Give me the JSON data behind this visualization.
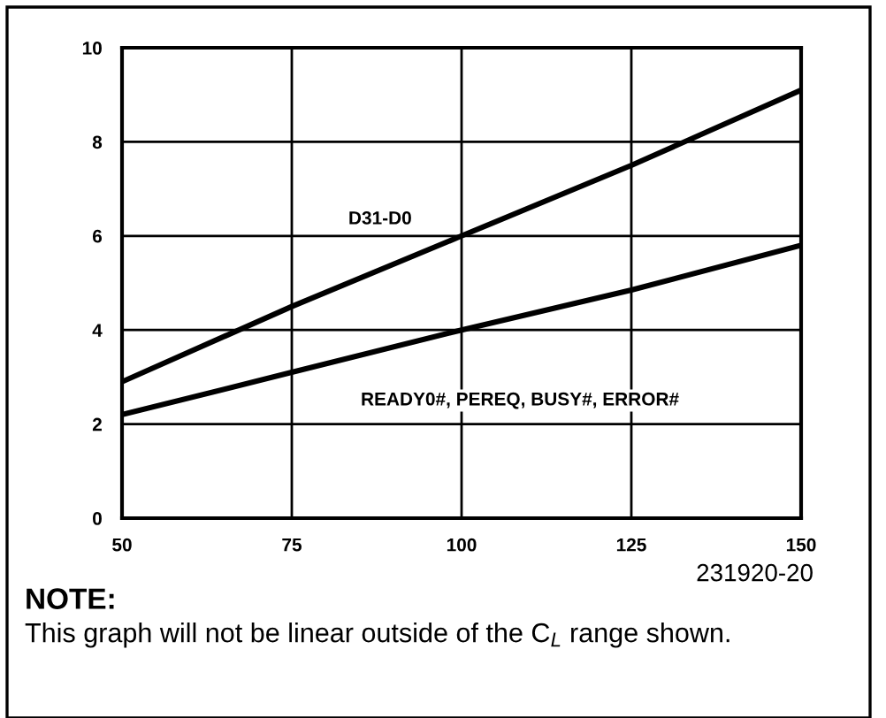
{
  "chart_data": {
    "type": "line",
    "x": [
      50,
      75,
      100,
      125,
      150
    ],
    "series": [
      {
        "name": "D31-D0",
        "color": "#000000",
        "values": [
          2.9,
          4.5,
          6.0,
          7.5,
          9.1
        ]
      },
      {
        "name": "READY0#, PEREQ, BUSY#, ERROR#",
        "color": "#000000",
        "values": [
          2.2,
          3.1,
          4.0,
          4.85,
          5.8
        ]
      }
    ],
    "xlim": [
      50,
      150
    ],
    "xticks": [
      50,
      75,
      100,
      125,
      150
    ],
    "ylim": [
      0,
      10
    ],
    "yticks": [
      0,
      2,
      4,
      6,
      8,
      10
    ],
    "grid": true,
    "legend": false,
    "marker": "none",
    "line_style": "solid",
    "annotations": [
      "231920-20",
      "NOTE:",
      "This graph will not be linear outside of the C$_{L}$ range shown."
    ]
  }
}
